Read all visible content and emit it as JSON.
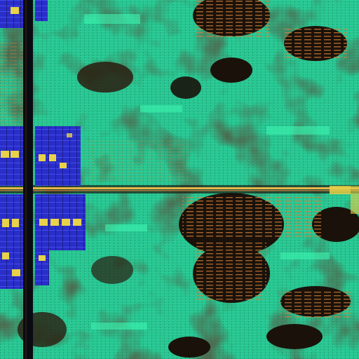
{
  "image": {
    "subject": "chip-die-micrograph",
    "palette": {
      "logic_green": "#1fd89a",
      "logic_green_bright": "#3cf5b0",
      "logic_green_dark": "#0f7a55",
      "void_dark": "#1a120a",
      "void_mid": "#3a2410",
      "trace_orange": "#d9803a",
      "trace_gold": "#e6b54a",
      "bus_brown": "#5a3a18",
      "spine_black": "#0a0a12",
      "memory_blue": "#2a2ec8",
      "memory_blue_light": "#4a5cff",
      "pad_yellow": "#e8d24a"
    }
  }
}
